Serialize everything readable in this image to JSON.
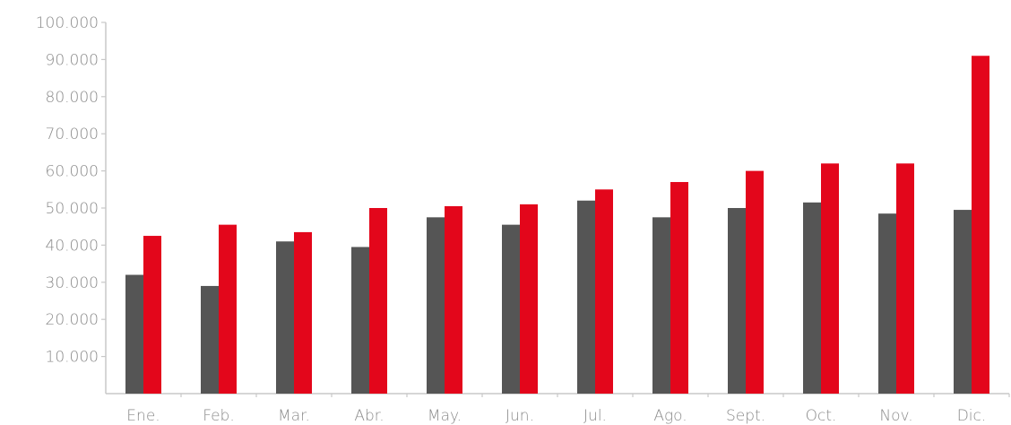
{
  "chart_data": {
    "type": "bar",
    "title": "",
    "xlabel": "",
    "ylabel": "",
    "ylim": [
      0,
      100000
    ],
    "y_ticks": [
      10000,
      20000,
      30000,
      40000,
      50000,
      60000,
      70000,
      80000,
      90000,
      100000
    ],
    "y_tick_labels": [
      "10.000",
      "20.000",
      "30.000",
      "40.000",
      "50.000",
      "60.000",
      "70.000",
      "80.000",
      "90.000",
      "100.000"
    ],
    "categories": [
      "Ene.",
      "Feb.",
      "Mar.",
      "Abr.",
      "May.",
      "Jun.",
      "Jul.",
      "Ago.",
      "Sept.",
      "Oct.",
      "Nov.",
      "Dic."
    ],
    "series": [
      {
        "color": "#555555",
        "values": [
          32000,
          29000,
          41000,
          39500,
          47500,
          45500,
          52000,
          47500,
          50000,
          51500,
          48500,
          49500
        ]
      },
      {
        "color": "#e3061b",
        "values": [
          42500,
          45500,
          43500,
          50000,
          50500,
          51000,
          55000,
          57000,
          60000,
          62000,
          62000,
          91000
        ]
      }
    ],
    "grid": false,
    "legend": false
  }
}
